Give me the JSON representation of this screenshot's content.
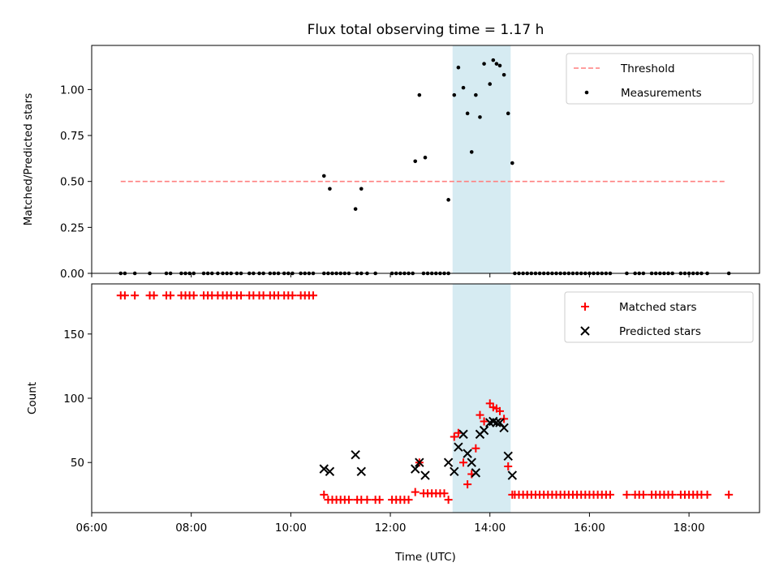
{
  "chart_data": [
    {
      "type": "scatter",
      "title": "Flux total observing time = 1.17 h",
      "xlabel": "",
      "ylabel": "Matched/Predicted stars",
      "ylim": [
        0,
        1.24
      ],
      "xlim": [
        "06:00",
        "19:25"
      ],
      "grid": false,
      "legend_position": "top-right",
      "highlight_span": {
        "start": "13:15",
        "end": "14:25",
        "color": "#add8e6"
      },
      "x_ticks": [
        "06:00",
        "08:00",
        "10:00",
        "12:00",
        "14:00",
        "16:00",
        "18:00"
      ],
      "y_ticks": [
        "0.00",
        "0.25",
        "0.50",
        "0.75",
        "1.00"
      ],
      "series": [
        {
          "name": "Threshold",
          "kind": "line",
          "style": "dashed",
          "color": "#ff7f7f",
          "x": [
            "06:35",
            "18:45"
          ],
          "y": [
            0.5,
            0.5
          ]
        },
        {
          "name": "Measurements",
          "kind": "scatter",
          "color": "#000000",
          "x": [
            "06:35",
            "06:40",
            "06:52",
            "07:10",
            "07:30",
            "07:35",
            "07:48",
            "07:53",
            "07:58",
            "08:03",
            "08:15",
            "08:20",
            "08:25",
            "08:32",
            "08:38",
            "08:43",
            "08:48",
            "08:55",
            "09:00",
            "09:10",
            "09:15",
            "09:22",
            "09:27",
            "09:35",
            "09:40",
            "09:45",
            "09:52",
            "09:57",
            "10:02",
            "10:12",
            "10:17",
            "10:22",
            "10:27",
            "10:40",
            "10:45",
            "10:50",
            "10:55",
            "11:00",
            "11:05",
            "11:10",
            "11:20",
            "11:25",
            "11:32",
            "11:42",
            "12:02",
            "12:07",
            "12:12",
            "12:17",
            "12:22",
            "12:27",
            "12:40",
            "12:45",
            "12:50",
            "12:55",
            "13:00",
            "13:05",
            "13:10",
            "14:30",
            "14:35",
            "14:40",
            "14:45",
            "14:50",
            "14:55",
            "15:00",
            "15:05",
            "15:10",
            "15:15",
            "15:20",
            "15:25",
            "15:30",
            "15:35",
            "15:40",
            "15:45",
            "15:50",
            "15:55",
            "16:00",
            "16:05",
            "16:10",
            "16:15",
            "16:20",
            "16:25",
            "16:45",
            "16:55",
            "17:00",
            "17:05",
            "17:15",
            "17:20",
            "17:25",
            "17:30",
            "17:35",
            "17:40",
            "17:50",
            "17:55",
            "18:00",
            "18:05",
            "18:10",
            "18:15",
            "18:22",
            "18:48",
            "10:40",
            "10:47",
            "11:18",
            "11:25",
            "12:30",
            "12:35",
            "12:42",
            "13:10",
            "13:17",
            "13:22",
            "13:28",
            "13:33",
            "13:38",
            "13:43",
            "13:48",
            "13:53",
            "14:00",
            "14:04",
            "14:08",
            "14:12",
            "14:17",
            "14:22",
            "14:27"
          ],
          "y": [
            0,
            0,
            0,
            0,
            0,
            0,
            0,
            0,
            0,
            0,
            0,
            0,
            0,
            0,
            0,
            0,
            0,
            0,
            0,
            0,
            0,
            0,
            0,
            0,
            0,
            0,
            0,
            0,
            0,
            0,
            0,
            0,
            0,
            0,
            0,
            0,
            0,
            0,
            0,
            0,
            0,
            0,
            0,
            0,
            0,
            0,
            0,
            0,
            0,
            0,
            0,
            0,
            0,
            0,
            0,
            0,
            0,
            0,
            0,
            0,
            0,
            0,
            0,
            0,
            0,
            0,
            0,
            0,
            0,
            0,
            0,
            0,
            0,
            0,
            0,
            0,
            0,
            0,
            0,
            0,
            0,
            0,
            0,
            0,
            0,
            0,
            0,
            0,
            0,
            0,
            0,
            0,
            0,
            0,
            0,
            0,
            0,
            0,
            0,
            0.53,
            0.46,
            0.35,
            0.46,
            0.61,
            0.97,
            0.63,
            0.4,
            0.97,
            1.12,
            1.01,
            0.87,
            0.66,
            0.97,
            0.85,
            1.14,
            1.03,
            1.16,
            1.14,
            1.13,
            1.08,
            0.87,
            0.6
          ]
        }
      ]
    },
    {
      "type": "scatter",
      "title": "",
      "xlabel": "Time (UTC)",
      "ylabel": "Count",
      "ylim": [
        11,
        189
      ],
      "xlim": [
        "06:00",
        "19:25"
      ],
      "grid": false,
      "legend_position": "top-right",
      "highlight_span": {
        "start": "13:15",
        "end": "14:25",
        "color": "#add8e6"
      },
      "x_ticks": [
        "06:00",
        "08:00",
        "10:00",
        "12:00",
        "14:00",
        "16:00",
        "18:00"
      ],
      "y_ticks": [
        "50",
        "100",
        "150"
      ],
      "series": [
        {
          "name": "Matched stars",
          "kind": "plus",
          "color": "#ff0000",
          "x": [
            "06:35",
            "06:40",
            "06:52",
            "07:10",
            "07:15",
            "07:30",
            "07:35",
            "07:48",
            "07:53",
            "07:58",
            "08:03",
            "08:15",
            "08:20",
            "08:25",
            "08:32",
            "08:38",
            "08:43",
            "08:48",
            "08:55",
            "09:00",
            "09:10",
            "09:15",
            "09:22",
            "09:27",
            "09:35",
            "09:40",
            "09:45",
            "09:52",
            "09:57",
            "10:02",
            "10:12",
            "10:17",
            "10:22",
            "10:27",
            "10:40",
            "10:45",
            "10:50",
            "10:55",
            "11:00",
            "11:05",
            "11:10",
            "11:20",
            "11:25",
            "11:32",
            "11:42",
            "11:47",
            "12:02",
            "12:07",
            "12:12",
            "12:17",
            "12:22",
            "12:30",
            "12:35",
            "12:40",
            "12:45",
            "12:50",
            "12:55",
            "13:00",
            "13:05",
            "13:10",
            "13:17",
            "13:22",
            "13:28",
            "13:33",
            "13:38",
            "13:43",
            "13:48",
            "13:53",
            "14:00",
            "14:04",
            "14:08",
            "14:12",
            "14:17",
            "14:22",
            "14:27",
            "14:30",
            "14:35",
            "14:40",
            "14:45",
            "14:50",
            "14:55",
            "15:00",
            "15:05",
            "15:10",
            "15:15",
            "15:20",
            "15:25",
            "15:30",
            "15:35",
            "15:40",
            "15:45",
            "15:50",
            "15:55",
            "16:00",
            "16:05",
            "16:10",
            "16:15",
            "16:20",
            "16:25",
            "16:45",
            "16:55",
            "17:00",
            "17:05",
            "17:15",
            "17:20",
            "17:25",
            "17:30",
            "17:35",
            "17:40",
            "17:50",
            "17:55",
            "18:00",
            "18:05",
            "18:10",
            "18:15",
            "18:22",
            "18:48"
          ],
          "y": [
            180,
            180,
            180,
            180,
            180,
            180,
            180,
            180,
            180,
            180,
            180,
            180,
            180,
            180,
            180,
            180,
            180,
            180,
            180,
            180,
            180,
            180,
            180,
            180,
            180,
            180,
            180,
            180,
            180,
            180,
            180,
            180,
            180,
            180,
            25,
            21,
            21,
            21,
            21,
            21,
            21,
            21,
            21,
            21,
            21,
            21,
            21,
            21,
            21,
            21,
            21,
            27,
            50,
            26,
            26,
            26,
            26,
            26,
            26,
            21,
            70,
            73,
            50,
            33,
            41,
            61,
            87,
            82,
            96,
            93,
            92,
            90,
            84,
            47,
            25,
            25,
            25,
            25,
            25,
            25,
            25,
            25,
            25,
            25,
            25,
            25,
            25,
            25,
            25,
            25,
            25,
            25,
            25,
            25,
            25,
            25,
            25,
            25,
            25,
            25,
            25,
            25,
            25,
            25,
            25,
            25,
            25,
            25,
            25,
            25,
            25,
            25,
            25,
            25,
            25,
            25,
            25
          ]
        },
        {
          "name": "Predicted stars",
          "kind": "x",
          "color": "#000000",
          "x": [
            "10:40",
            "10:47",
            "11:18",
            "11:25",
            "12:30",
            "12:35",
            "12:42",
            "13:10",
            "13:17",
            "13:22",
            "13:28",
            "13:33",
            "13:38",
            "13:43",
            "13:48",
            "13:53",
            "14:00",
            "14:04",
            "14:08",
            "14:12",
            "14:17",
            "14:22",
            "14:27"
          ],
          "y": [
            45,
            43,
            56,
            43,
            45,
            50,
            40,
            50,
            43,
            62,
            72,
            57,
            50,
            42,
            72,
            75,
            81,
            82,
            81,
            81,
            77,
            55,
            40
          ]
        }
      ]
    }
  ]
}
